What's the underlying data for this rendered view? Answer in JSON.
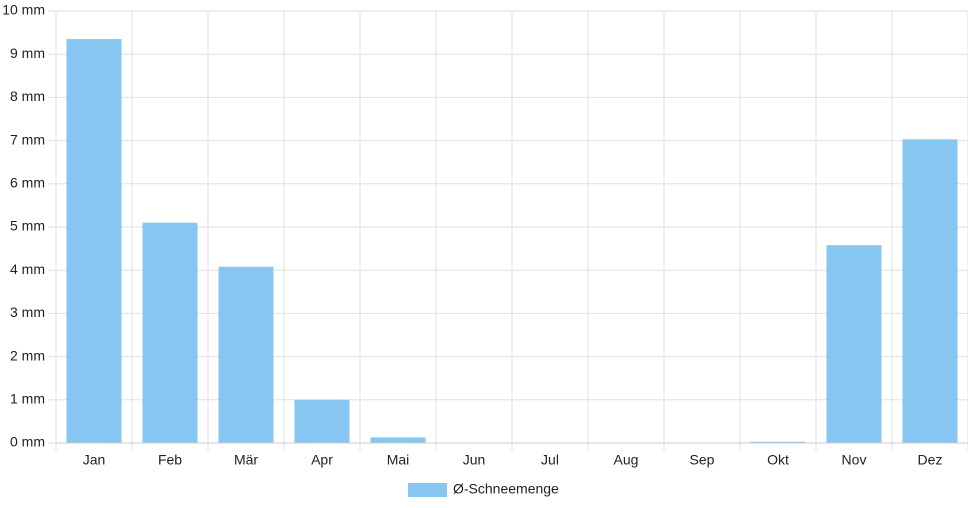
{
  "chart_data": {
    "type": "bar",
    "categories": [
      "Jan",
      "Feb",
      "Mär",
      "Apr",
      "Mai",
      "Jun",
      "Jul",
      "Aug",
      "Sep",
      "Okt",
      "Nov",
      "Dez"
    ],
    "series": [
      {
        "name": "Ø-Schneemenge",
        "color": "#88c6f2",
        "values": [
          9.35,
          5.1,
          4.08,
          1.0,
          0.13,
          0,
          0,
          0,
          0,
          0.03,
          4.58,
          7.03
        ]
      }
    ],
    "ylim": [
      0,
      10
    ],
    "yticks": [
      {
        "value": 0,
        "label": "0 mm"
      },
      {
        "value": 1,
        "label": "1 mm"
      },
      {
        "value": 2,
        "label": "2 mm"
      },
      {
        "value": 3,
        "label": "3 mm"
      },
      {
        "value": 4,
        "label": "4 mm"
      },
      {
        "value": 5,
        "label": "5 mm"
      },
      {
        "value": 6,
        "label": "6 mm"
      },
      {
        "value": 7,
        "label": "7 mm"
      },
      {
        "value": 8,
        "label": "8 mm"
      },
      {
        "value": 9,
        "label": "9 mm"
      },
      {
        "value": 10,
        "label": "10 mm"
      }
    ],
    "grid": true,
    "legend": "bottom"
  }
}
